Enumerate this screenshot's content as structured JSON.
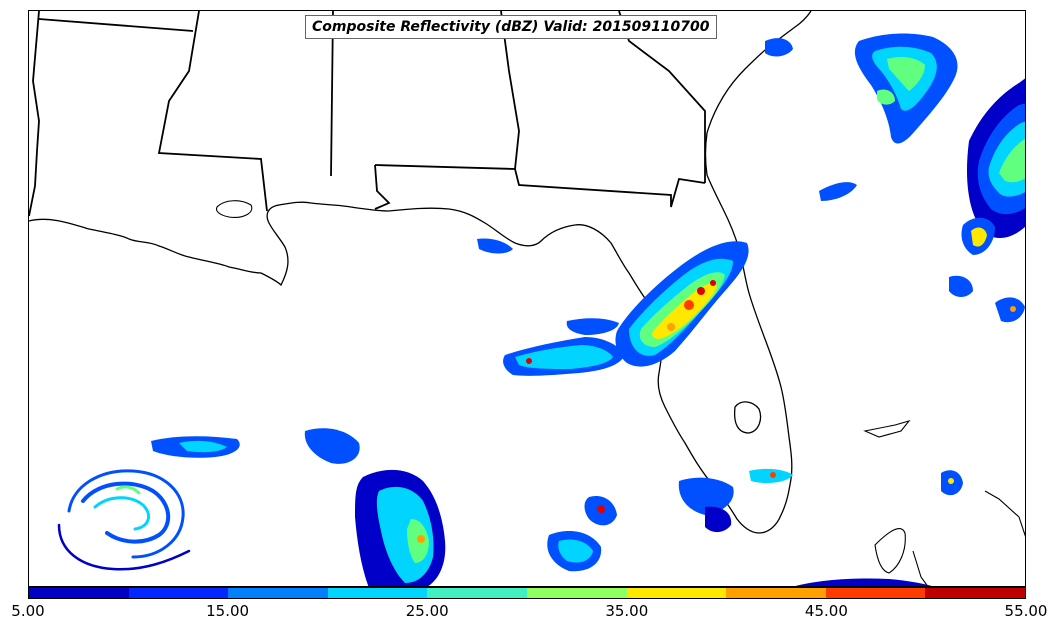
{
  "title": "Composite Reflectivity (dBZ) Valid: 201509110700",
  "colorbar": {
    "colors": [
      "#0000c8",
      "#0028ff",
      "#0080ff",
      "#00d4ff",
      "#40f0c0",
      "#90ff60",
      "#ffe800",
      "#ffa000",
      "#ff3c00",
      "#c00000"
    ],
    "tick_labels": [
      "5.00",
      "15.00",
      "25.00",
      "35.00",
      "45.00",
      "55.00"
    ],
    "min": 5,
    "max": 55,
    "step": 5
  },
  "map": {
    "region": "Gulf of Mexico / Southeastern United States",
    "features": [
      "state-borders",
      "coastlines",
      "florida-peninsula",
      "lake-okeechobee",
      "cuba-coast"
    ],
    "echo_colors": {
      "weak": "#0000c8",
      "light": "#0050ff",
      "moderate": "#00d4ff",
      "green": "#60ff80",
      "yellow": "#ffe800",
      "orange": "#ffa000",
      "red": "#e00000"
    }
  }
}
